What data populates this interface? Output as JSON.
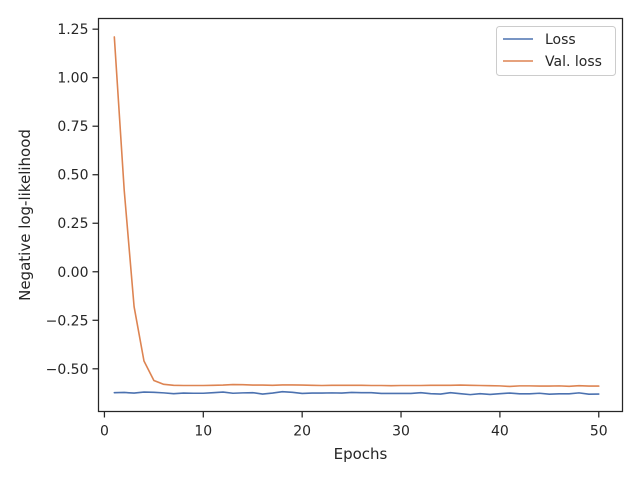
{
  "chart_data": {
    "type": "line",
    "title": "",
    "xlabel": "Epochs",
    "ylabel": "Negative log-likelihood",
    "xlim": [
      -0.6,
      52.4
    ],
    "ylim": [
      -0.72,
      1.305
    ],
    "xticks": [
      0,
      10,
      20,
      30,
      40,
      50
    ],
    "yticks": [
      -0.5,
      -0.25,
      0.0,
      0.25,
      0.5,
      0.75,
      1.0,
      1.25
    ],
    "xtick_labels": [
      "0",
      "10",
      "20",
      "30",
      "40",
      "50"
    ],
    "ytick_labels": [
      "−0.50",
      "−0.25",
      "0.00",
      "0.25",
      "0.50",
      "0.75",
      "1.00",
      "1.25"
    ],
    "grid": false,
    "legend_position": "top-right",
    "x": [
      1,
      2,
      3,
      4,
      5,
      6,
      7,
      8,
      9,
      10,
      11,
      12,
      13,
      14,
      15,
      16,
      17,
      18,
      19,
      20,
      21,
      22,
      23,
      24,
      25,
      26,
      27,
      28,
      29,
      30,
      31,
      32,
      33,
      34,
      35,
      36,
      37,
      38,
      39,
      40,
      41,
      42,
      43,
      44,
      45,
      46,
      47,
      48,
      49,
      50
    ],
    "series": [
      {
        "name": "Loss",
        "color": "#4c72b0",
        "values": [
          -0.623,
          -0.622,
          -0.625,
          -0.62,
          -0.621,
          -0.624,
          -0.628,
          -0.625,
          -0.626,
          -0.626,
          -0.623,
          -0.62,
          -0.626,
          -0.624,
          -0.623,
          -0.63,
          -0.625,
          -0.618,
          -0.621,
          -0.627,
          -0.625,
          -0.625,
          -0.624,
          -0.625,
          -0.622,
          -0.623,
          -0.623,
          -0.627,
          -0.627,
          -0.627,
          -0.627,
          -0.623,
          -0.628,
          -0.63,
          -0.623,
          -0.628,
          -0.633,
          -0.628,
          -0.632,
          -0.628,
          -0.625,
          -0.629,
          -0.629,
          -0.626,
          -0.631,
          -0.629,
          -0.629,
          -0.624,
          -0.631,
          -0.63
        ]
      },
      {
        "name": "Val. loss",
        "color": "#dd8452",
        "values": [
          1.21,
          0.42,
          -0.18,
          -0.46,
          -0.56,
          -0.58,
          -0.585,
          -0.586,
          -0.586,
          -0.586,
          -0.585,
          -0.584,
          -0.581,
          -0.582,
          -0.584,
          -0.584,
          -0.585,
          -0.583,
          -0.583,
          -0.584,
          -0.585,
          -0.586,
          -0.585,
          -0.585,
          -0.585,
          -0.585,
          -0.586,
          -0.586,
          -0.587,
          -0.586,
          -0.586,
          -0.586,
          -0.585,
          -0.585,
          -0.585,
          -0.584,
          -0.585,
          -0.586,
          -0.587,
          -0.588,
          -0.591,
          -0.588,
          -0.588,
          -0.589,
          -0.589,
          -0.588,
          -0.59,
          -0.587,
          -0.589,
          -0.589
        ]
      }
    ]
  }
}
